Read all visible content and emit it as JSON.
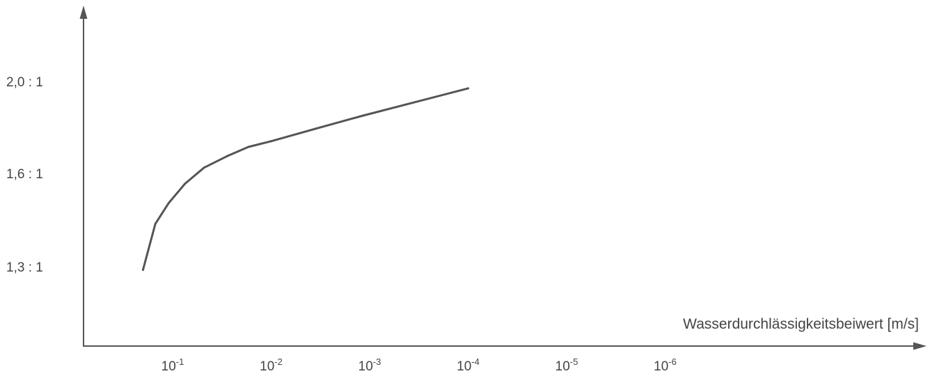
{
  "chart_data": {
    "type": "line",
    "title": "",
    "xlabel": "Wasserdurchlässigkeitsbeiwert [m/s]",
    "ylabel": "",
    "x_scale": "log-reversed",
    "x_ticks": [
      {
        "base": "10",
        "exp": "-1",
        "value": 0.1
      },
      {
        "base": "10",
        "exp": "-2",
        "value": 0.01
      },
      {
        "base": "10",
        "exp": "-3",
        "value": 0.001
      },
      {
        "base": "10",
        "exp": "-4",
        "value": 0.0001
      },
      {
        "base": "10",
        "exp": "-5",
        "value": 1e-05
      },
      {
        "base": "10",
        "exp": "-6",
        "value": 1e-06
      }
    ],
    "y_ticks": [
      {
        "label": "2,0 : 1",
        "value": 2.0
      },
      {
        "label": "1,6 : 1",
        "value": 1.6
      },
      {
        "label": "1,3 : 1",
        "value": 1.3
      }
    ],
    "grid": false,
    "series": [
      {
        "values": [
          {
            "x": 0.2,
            "y": 1.18
          },
          {
            "x": 0.15,
            "y": 1.38
          },
          {
            "x": 0.11,
            "y": 1.47
          },
          {
            "x": 0.075,
            "y": 1.555
          },
          {
            "x": 0.048,
            "y": 1.625
          },
          {
            "x": 0.028,
            "y": 1.675
          },
          {
            "x": 0.017,
            "y": 1.715
          },
          {
            "x": 0.01,
            "y": 1.74
          },
          {
            "x": 0.0035,
            "y": 1.795
          },
          {
            "x": 0.0012,
            "y": 1.85
          },
          {
            "x": 0.0001,
            "y": 1.97
          }
        ]
      }
    ]
  }
}
